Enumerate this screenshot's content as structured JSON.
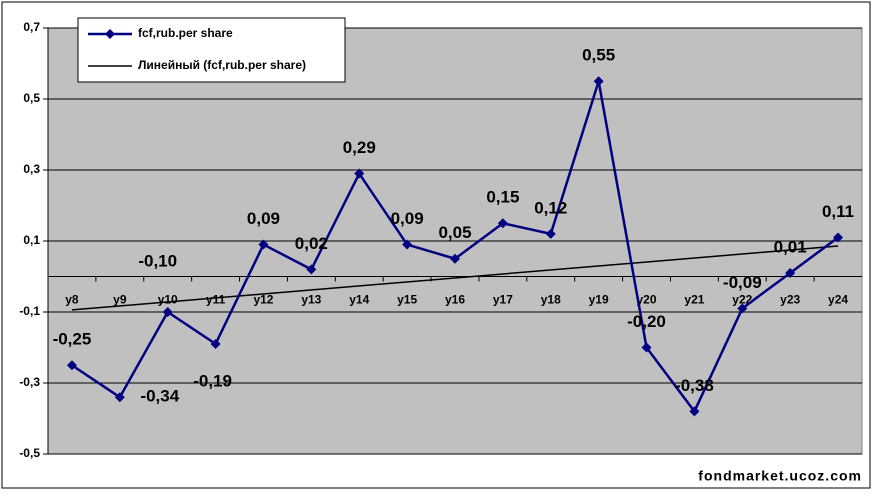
{
  "chart_data": {
    "type": "line",
    "categories": [
      "y8",
      "y9",
      "y10",
      "y11",
      "y12",
      "y13",
      "y14",
      "y15",
      "y16",
      "y17",
      "y18",
      "y19",
      "y20",
      "y21",
      "y22",
      "y23",
      "y24"
    ],
    "series": [
      {
        "name": "fcf,rub.per share",
        "color": "#000080",
        "values": [
          -0.25,
          -0.34,
          -0.1,
          -0.19,
          0.09,
          0.02,
          0.29,
          0.09,
          0.05,
          0.15,
          0.12,
          0.55,
          -0.2,
          -0.38,
          -0.09,
          0.01,
          0.11
        ],
        "value_labels": [
          "-0,25",
          "-0,34",
          "-0,10",
          "-0,19",
          "0,09",
          "0,02",
          "0,29",
          "0,09",
          "0,05",
          "0,15",
          "0,12",
          "0,55",
          "-0,20",
          "-0,38",
          "-0,09",
          "0,01",
          "0,11"
        ]
      }
    ],
    "trendline": {
      "type": "linear",
      "name": "Линейный (fcf,rub.per share)",
      "color": "#000000"
    },
    "ylim": [
      -0.5,
      0.7
    ],
    "yticks": [
      {
        "value": -0.5,
        "label": "-0,5"
      },
      {
        "value": -0.3,
        "label": "-0,3"
      },
      {
        "value": -0.1,
        "label": "-0,1"
      },
      {
        "value": 0.1,
        "label": "0,1"
      },
      {
        "value": 0.3,
        "label": "0,3"
      },
      {
        "value": 0.5,
        "label": "0,5"
      },
      {
        "value": 0.7,
        "label": "0,7"
      }
    ],
    "grid": true,
    "legend": "top-left",
    "plot_background": "#c0c0c0",
    "watermark": "fondmarket.ucoz.com"
  }
}
